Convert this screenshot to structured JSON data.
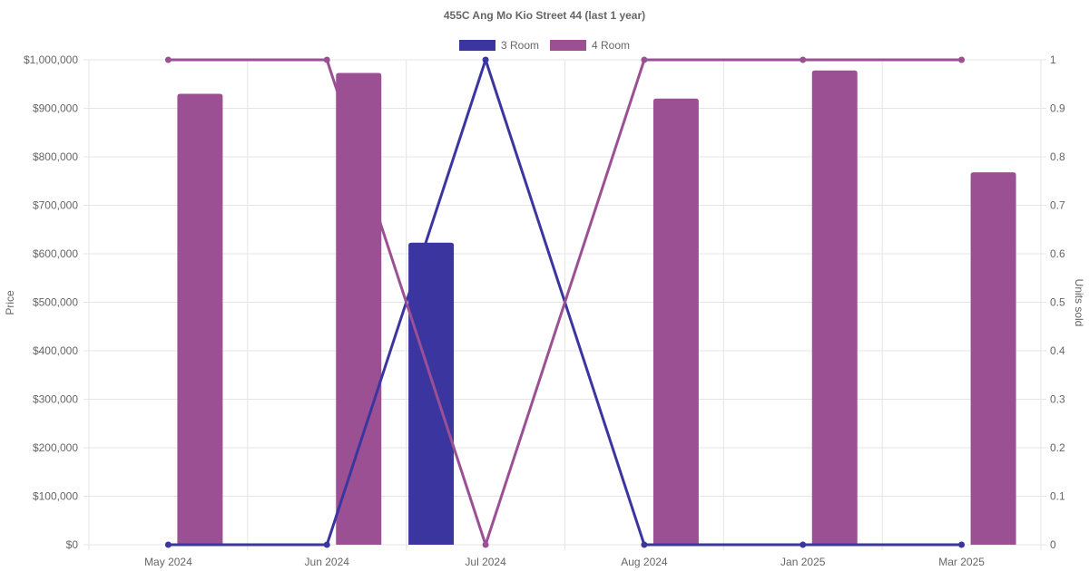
{
  "chart_data": {
    "type": "bar",
    "title": "455C Ang Mo Kio Street 44 (last 1 year)",
    "categories": [
      "May 2024",
      "Jun 2024",
      "Jul 2024",
      "Aug 2024",
      "Jan 2025",
      "Mar 2025"
    ],
    "ylabel": "Price",
    "y2label": "Units sold",
    "ylim": [
      0,
      1000000
    ],
    "y2lim": [
      0,
      1
    ],
    "y_ticks": [
      "$0",
      "$100,000",
      "$200,000",
      "$300,000",
      "$400,000",
      "$500,000",
      "$600,000",
      "$700,000",
      "$800,000",
      "$900,000",
      "$1,000,000"
    ],
    "y2_ticks": [
      "0",
      "0.1",
      "0.2",
      "0.3",
      "0.4",
      "0.5",
      "0.6",
      "0.7",
      "0.8",
      "0.9",
      "1"
    ],
    "grid": true,
    "legend_position": "top-center",
    "series": [
      {
        "name": "3 Room",
        "color": "#3b35a0",
        "bar_values": [
          null,
          null,
          623000,
          null,
          null,
          null
        ],
        "line_values": [
          0,
          0,
          1,
          0,
          0,
          0
        ]
      },
      {
        "name": "4 Room",
        "color": "#9c5094",
        "bar_values": [
          930000,
          973000,
          null,
          920000,
          978000,
          768000
        ],
        "line_values": [
          1,
          1,
          0,
          1,
          1,
          1
        ]
      }
    ]
  }
}
